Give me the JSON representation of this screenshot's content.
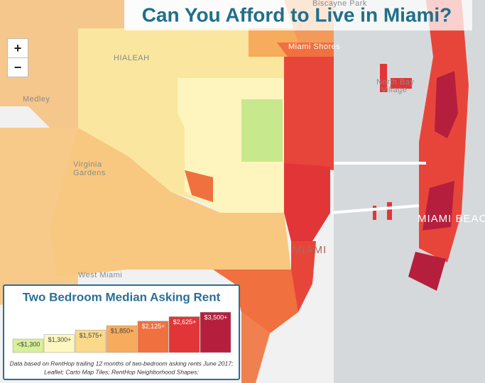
{
  "title": "Can You Afford to Live in Miami?",
  "zoom": {
    "in": "+",
    "out": "−"
  },
  "places": {
    "biscayne_park": "Biscayne Park",
    "hialeah": "HIALEAH",
    "miami_shores": "Miami Shores",
    "medley": "Medley",
    "north_bay": "North Bay",
    "village": "Village",
    "virginia": "Virginia",
    "gardens": "Gardens",
    "miami": "MIAMI",
    "miami_beach": "MIAMI BEACH",
    "west_miami": "West Miami"
  },
  "legend": {
    "title": "Two Bedroom Median Asking Rent",
    "items": [
      {
        "label": "<$1,300",
        "color": "#d9ef9a"
      },
      {
        "label": "$1,300+",
        "color": "#fdf7bf"
      },
      {
        "label": "$1,575+",
        "color": "#fbd98a"
      },
      {
        "label": "$1,850+",
        "color": "#f7ab5c"
      },
      {
        "label": "$2,125+",
        "color": "#f0703f"
      },
      {
        "label": "$2,625+",
        "color": "#e23537"
      },
      {
        "label": "$3,500+",
        "color": "#b51f3d"
      }
    ],
    "note": [
      "Data based on RentHop trailing 12 months of two-bedroom asking rents June 2017;",
      "Leaflet; Carto Map Tiles; RentHop Neighborhood Shapes;"
    ]
  }
}
